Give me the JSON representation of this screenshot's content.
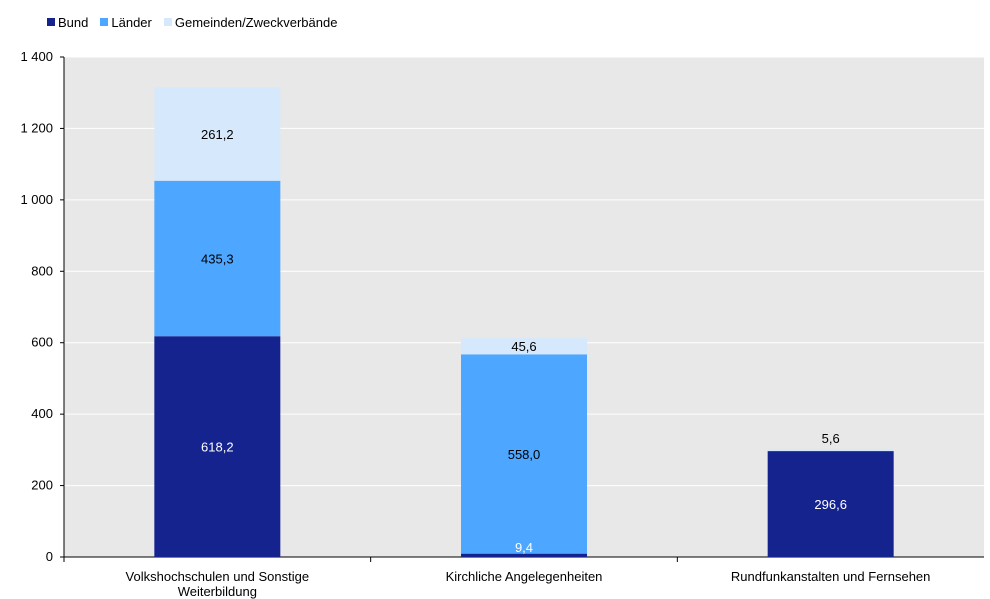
{
  "chart_data": {
    "type": "bar",
    "stacked": true,
    "categories": [
      "Volkshochschulen und Sonstige Weiterbildung",
      "Kirchliche Angelegenheiten",
      "Rundfunkanstalten und Fernsehen"
    ],
    "category_lines": [
      [
        "Volkshochschulen und Sonstige",
        "Weiterbildung"
      ],
      [
        "Kirchliche Angelegenheiten"
      ],
      [
        "Rundfunkanstalten und Fernsehen"
      ]
    ],
    "series": [
      {
        "name": "Bund",
        "color": "#15238f",
        "values": [
          618.2,
          9.4,
          296.6
        ],
        "labels": [
          "618,2",
          "9,4",
          "296,6"
        ]
      },
      {
        "name": "Länder",
        "color": "#4da6ff",
        "values": [
          435.3,
          558.0,
          0
        ],
        "labels": [
          "435,3",
          "558,0",
          ""
        ]
      },
      {
        "name": "Gemeinden/Zweckverbände",
        "color": "#d6e8fb",
        "values": [
          261.2,
          45.6,
          5.6
        ],
        "labels": [
          "261,2",
          "45,6",
          "5,6"
        ]
      }
    ],
    "ylim": [
      0,
      1400
    ],
    "yticks": [
      0,
      200,
      400,
      600,
      800,
      1000,
      1200,
      1400
    ],
    "ytick_labels": [
      "0",
      "200",
      "400",
      "600",
      "800",
      "1 000",
      "1 200",
      "1 400"
    ],
    "grid": true,
    "legend_position": "top-left",
    "plot_background": "#e8e8e8"
  }
}
